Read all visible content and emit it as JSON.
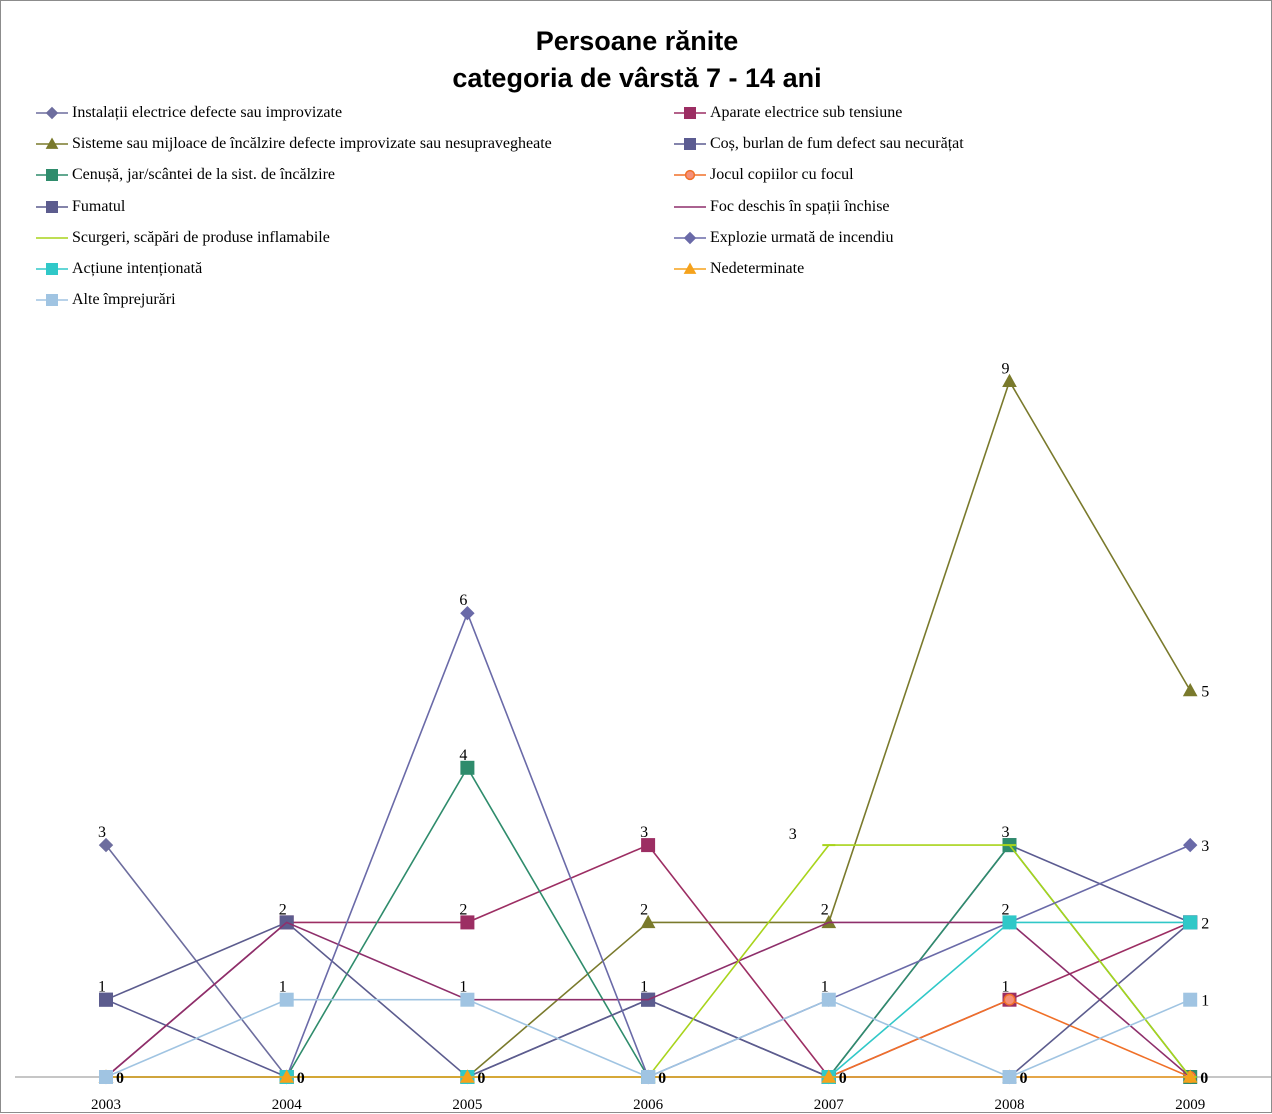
{
  "chart_data": {
    "type": "line",
    "title_lines": [
      "Persoane rănite",
      "categoria de vârstă 7 - 14 ani"
    ],
    "categories": [
      "2003",
      "2004",
      "2005",
      "2006",
      "2007",
      "2008",
      "2009"
    ],
    "ylim": [
      0,
      11
    ],
    "grid": false,
    "legend_position": "top",
    "series": [
      {
        "name": "Instalații electrice defecte sau improvizate",
        "values": [
          3,
          0,
          0,
          0,
          0,
          0,
          0
        ],
        "color": "#6d6d9e",
        "marker": "diamond"
      },
      {
        "name": "Aparate electrice sub tensiune",
        "values": [
          0,
          2,
          2,
          3,
          0,
          1,
          2
        ],
        "color": "#9c2e63",
        "marker": "square"
      },
      {
        "name": "Sisteme sau mijloace de încălzire defecte improvizate sau nesupravegheate",
        "values": [
          0,
          0,
          0,
          2,
          2,
          9,
          5
        ],
        "color": "#7a7a2c",
        "marker": "triangle"
      },
      {
        "name": "Coș, burlan de fum defect sau necurățat",
        "values": [
          1,
          0,
          0,
          1,
          0,
          3,
          2
        ],
        "color": "#5b5b91",
        "marker": "square"
      },
      {
        "name": "Cenușă, jar/scântei de la sist. de încălzire",
        "values": [
          0,
          0,
          4,
          0,
          0,
          3,
          0
        ],
        "color": "#2f8c6c",
        "marker": "square"
      },
      {
        "name": "Jocul copiilor cu focul",
        "values": [
          0,
          0,
          0,
          0,
          0,
          1,
          0
        ],
        "color": "#f07028",
        "marker": "circle"
      },
      {
        "name": "Fumatul",
        "values": [
          1,
          2,
          0,
          1,
          0,
          0,
          2
        ],
        "color": "#5c5c8e",
        "marker": "square"
      },
      {
        "name": "Foc deschis în spații închise",
        "values": [
          0,
          2,
          1,
          1,
          2,
          2,
          0
        ],
        "color": "#8e2f6b",
        "marker": "none"
      },
      {
        "name": "Scurgeri, scăpări de produse inflamabile",
        "values": [
          0,
          0,
          0,
          0,
          3,
          3,
          0
        ],
        "color": "#a8d41c",
        "marker": "dash"
      },
      {
        "name": "Explozie urmată de incendiu",
        "values": [
          0,
          0,
          6,
          0,
          1,
          2,
          3
        ],
        "color": "#6a6aa8",
        "marker": "diamond"
      },
      {
        "name": "Acțiune intenționată",
        "values": [
          0,
          0,
          0,
          0,
          0,
          2,
          2
        ],
        "color": "#30c8c8",
        "marker": "square"
      },
      {
        "name": "Nedeterminate",
        "values": [
          0,
          0,
          0,
          0,
          0,
          0,
          0
        ],
        "color": "#f5a21c",
        "marker": "triangle"
      },
      {
        "name": "Alte împrejurări",
        "values": [
          0,
          1,
          1,
          0,
          1,
          0,
          1
        ],
        "color": "#a0c4e2",
        "marker": "square"
      }
    ],
    "data_labels": [
      {
        "category": "2003",
        "value": 3,
        "text": "3"
      },
      {
        "category": "2003",
        "value": 1,
        "text": "1"
      },
      {
        "category": "2003",
        "value": 0,
        "text": "0"
      },
      {
        "category": "2004",
        "value": 2,
        "text": "2"
      },
      {
        "category": "2004",
        "value": 1,
        "text": "1"
      },
      {
        "category": "2004",
        "value": 0,
        "text": "0"
      },
      {
        "category": "2005",
        "value": 6,
        "text": "6"
      },
      {
        "category": "2005",
        "value": 4,
        "text": "4"
      },
      {
        "category": "2005",
        "value": 2,
        "text": "2"
      },
      {
        "category": "2005",
        "value": 1,
        "text": "1"
      },
      {
        "category": "2005",
        "value": 0,
        "text": "0"
      },
      {
        "category": "2006",
        "value": 3,
        "text": "3"
      },
      {
        "category": "2006",
        "value": 2,
        "text": "2"
      },
      {
        "category": "2006",
        "value": 1,
        "text": "1"
      },
      {
        "category": "2006",
        "value": 0,
        "text": "0"
      },
      {
        "category": "2007",
        "value": 3,
        "text": "3"
      },
      {
        "category": "2007",
        "value": 2,
        "text": "2"
      },
      {
        "category": "2007",
        "value": 1,
        "text": "1"
      },
      {
        "category": "2007",
        "value": 0,
        "text": "0"
      },
      {
        "category": "2008",
        "value": 9,
        "text": "9"
      },
      {
        "category": "2008",
        "value": 3,
        "text": "3"
      },
      {
        "category": "2008",
        "value": 2,
        "text": "2"
      },
      {
        "category": "2008",
        "value": 1,
        "text": "1"
      },
      {
        "category": "2008",
        "value": 0,
        "text": "0"
      },
      {
        "category": "2009",
        "value": 5,
        "text": "5"
      },
      {
        "category": "2009",
        "value": 3,
        "text": "3"
      },
      {
        "category": "2009",
        "value": 2,
        "text": "2"
      },
      {
        "category": "2009",
        "value": 1,
        "text": "1"
      },
      {
        "category": "2009",
        "value": 0,
        "text": "0"
      }
    ]
  }
}
